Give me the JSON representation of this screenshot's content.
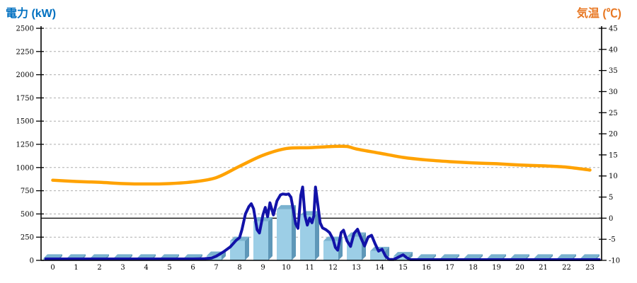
{
  "colors": {
    "left_title": "#0070C0",
    "right_title": "#E87722",
    "bar_front": "#9CCEE6",
    "bar_top": "#7AB2CF",
    "bar_side": "#5E97B8",
    "power_line": "#1212A8",
    "temp_line": "#FFA200",
    "gridline": "#ADADAD",
    "axis": "#000000",
    "zero_line": "#000000"
  },
  "chart_data": {
    "type": "combo",
    "left_axis": {
      "title": "電力 (kW)",
      "min": 0,
      "max": 2500,
      "step": 250,
      "tick_labels": [
        "0",
        "250",
        "500",
        "750",
        "1000",
        "1250",
        "1500",
        "1750",
        "2000",
        "2250",
        "2500"
      ]
    },
    "right_axis": {
      "title": "気温 (℃)",
      "min": -10,
      "max": 45,
      "step": 5,
      "tick_labels": [
        "-10",
        "-5",
        "0",
        "5",
        "10",
        "15",
        "20",
        "25",
        "30",
        "35",
        "40",
        "45"
      ]
    },
    "x_axis": {
      "tick_labels": [
        "0",
        "1",
        "2",
        "3",
        "4",
        "5",
        "6",
        "7",
        "8",
        "9",
        "10",
        "11",
        "12",
        "13",
        "14",
        "15",
        "16",
        "17",
        "18",
        "19",
        "20",
        "21",
        "22",
        "23"
      ]
    },
    "grid": {
      "style": "dashed-horizontal",
      "at_left_axis_steps": true
    },
    "reference_line": {
      "axis": "right",
      "value": 0
    },
    "legend": "none",
    "bars_kw": {
      "axis": "left",
      "categories": [
        0,
        1,
        2,
        3,
        4,
        5,
        6,
        7,
        8,
        9,
        10,
        11,
        12,
        13,
        14,
        15,
        16,
        17,
        18,
        19,
        20,
        21,
        22,
        23
      ],
      "values": [
        20,
        20,
        20,
        20,
        20,
        20,
        20,
        50,
        210,
        420,
        550,
        485,
        210,
        255,
        100,
        45,
        20,
        20,
        20,
        20,
        20,
        20,
        20,
        20
      ]
    },
    "power_line_kw": {
      "axis": "left",
      "points": [
        [
          -0.3,
          15
        ],
        [
          0,
          15
        ],
        [
          1,
          15
        ],
        [
          2,
          15
        ],
        [
          3,
          15
        ],
        [
          4,
          15
        ],
        [
          5,
          15
        ],
        [
          6,
          15
        ],
        [
          6.5,
          18
        ],
        [
          6.8,
          25
        ],
        [
          7.0,
          45
        ],
        [
          7.3,
          90
        ],
        [
          7.6,
          145
        ],
        [
          7.85,
          215
        ],
        [
          8.0,
          245
        ],
        [
          8.1,
          330
        ],
        [
          8.25,
          500
        ],
        [
          8.4,
          580
        ],
        [
          8.5,
          610
        ],
        [
          8.6,
          555
        ],
        [
          8.75,
          330
        ],
        [
          8.85,
          295
        ],
        [
          9.0,
          490
        ],
        [
          9.1,
          570
        ],
        [
          9.2,
          470
        ],
        [
          9.3,
          620
        ],
        [
          9.45,
          490
        ],
        [
          9.6,
          640
        ],
        [
          9.75,
          705
        ],
        [
          9.85,
          715
        ],
        [
          10.0,
          710
        ],
        [
          10.1,
          715
        ],
        [
          10.2,
          680
        ],
        [
          10.3,
          545
        ],
        [
          10.4,
          395
        ],
        [
          10.5,
          345
        ],
        [
          10.62,
          700
        ],
        [
          10.7,
          790
        ],
        [
          10.8,
          480
        ],
        [
          10.9,
          380
        ],
        [
          11.0,
          455
        ],
        [
          11.1,
          405
        ],
        [
          11.18,
          480
        ],
        [
          11.25,
          790
        ],
        [
          11.35,
          600
        ],
        [
          11.45,
          405
        ],
        [
          11.55,
          350
        ],
        [
          11.7,
          330
        ],
        [
          11.85,
          300
        ],
        [
          12.0,
          230
        ],
        [
          12.1,
          140
        ],
        [
          12.2,
          110
        ],
        [
          12.35,
          300
        ],
        [
          12.45,
          325
        ],
        [
          12.6,
          210
        ],
        [
          12.75,
          150
        ],
        [
          12.9,
          290
        ],
        [
          13.05,
          335
        ],
        [
          13.2,
          240
        ],
        [
          13.35,
          155
        ],
        [
          13.5,
          250
        ],
        [
          13.65,
          270
        ],
        [
          13.8,
          180
        ],
        [
          13.95,
          100
        ],
        [
          14.1,
          120
        ],
        [
          14.25,
          45
        ],
        [
          14.4,
          10
        ],
        [
          14.6,
          10
        ],
        [
          14.8,
          35
        ],
        [
          15.0,
          60
        ],
        [
          15.15,
          30
        ],
        [
          15.3,
          8
        ],
        [
          15.5,
          8
        ],
        [
          16,
          8
        ],
        [
          17,
          8
        ],
        [
          18,
          8
        ],
        [
          19,
          8
        ],
        [
          20,
          8
        ],
        [
          21,
          8
        ],
        [
          22,
          8
        ],
        [
          23,
          8
        ],
        [
          23.4,
          8
        ]
      ]
    },
    "temperature_c": {
      "axis": "right",
      "points": [
        [
          0,
          9.0
        ],
        [
          1,
          8.7
        ],
        [
          2,
          8.5
        ],
        [
          3,
          8.2
        ],
        [
          4,
          8.1
        ],
        [
          5,
          8.2
        ],
        [
          6,
          8.6
        ],
        [
          7,
          9.6
        ],
        [
          8,
          12.3
        ],
        [
          9,
          14.9
        ],
        [
          10,
          16.5
        ],
        [
          11,
          16.7
        ],
        [
          12,
          17.0
        ],
        [
          12.6,
          17.0
        ],
        [
          13,
          16.4
        ],
        [
          14,
          15.4
        ],
        [
          15,
          14.4
        ],
        [
          16,
          13.8
        ],
        [
          17,
          13.4
        ],
        [
          18,
          13.1
        ],
        [
          19,
          12.9
        ],
        [
          20,
          12.6
        ],
        [
          21,
          12.4
        ],
        [
          22,
          12.1
        ],
        [
          23,
          11.4
        ]
      ]
    }
  }
}
